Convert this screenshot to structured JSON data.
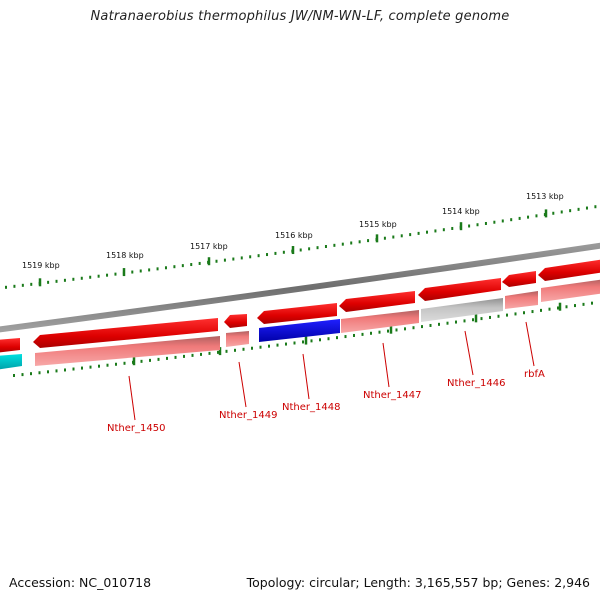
{
  "title": "Natranaerobius thermophilus JW/NM-WN-LF, complete genome",
  "footer": {
    "accession": "Accession: NC_010718",
    "topology": "Topology: circular; Length: 3,165,557 bp; Genes: 2,946"
  },
  "scale_labels": [
    "1519 kbp",
    "1518 kbp",
    "1517 kbp",
    "1516 kbp",
    "1515 kbp",
    "1514 kbp",
    "1513 kbp"
  ],
  "gene_labels": [
    "Nther_1450",
    "Nther_1449",
    "Nther_1448",
    "Nther_1447",
    "Nther_1446",
    "rbfA"
  ],
  "colors": {
    "forward_gene": "#e60000",
    "reverse_gene_shade": "#f08080",
    "highlight_gene": "#0000cc",
    "grey_gene": "#bbbbbb",
    "other_gene": "#00c0c0",
    "backbone": "#808080",
    "ticks": "#1a7a1a",
    "label": "#cc0000"
  }
}
